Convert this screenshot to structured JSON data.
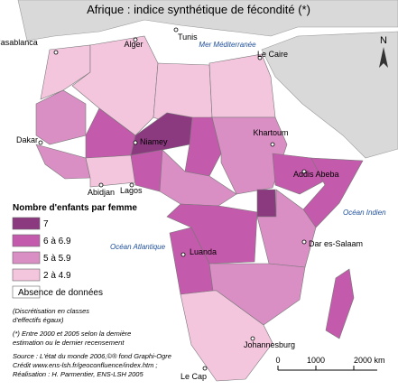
{
  "title": "Afrique : indice synthétique de fécondité (*)",
  "seas": [
    "Mer Méditerranée",
    "Océan Indien",
    "Océan Atlantique"
  ],
  "cities": [
    "Casablanca",
    "Alger",
    "Tunis",
    "Le Caire",
    "Dakar",
    "Niamey",
    "Khartoum",
    "Addis Abeba",
    "Abidjan",
    "Lagos",
    "Luanda",
    "Dar es-Salaam",
    "Johannesburg",
    "Le Cap"
  ],
  "legend": {
    "title": "Nombre d'enfants par femme",
    "items": [
      {
        "label": "7",
        "color": "#8b3a80"
      },
      {
        "label": "6 à 6.9",
        "color": "#c45aab"
      },
      {
        "label": "5 à 5.9",
        "color": "#d98fc4"
      },
      {
        "label": "2 à 4.9",
        "color": "#f3c6de"
      },
      {
        "label": "Absence de données",
        "color": "#ffffff"
      }
    ]
  },
  "notes": [
    "(Discrétisation en classes",
    "d'effectifs égaux)",
    "(*) Entre 2000 et 2005 selon la dernière",
    "estimation ou le dernier recensement",
    "Source : L'état du monde 2006,©® fond Graphi-Ogre",
    "Crédit www.ens-lsh.fr/geoconfluence/index.htm ;",
    "Réalisation : H. Parmentier, ENS-LSH 2005"
  ],
  "scale": [
    "0",
    "1000",
    "2000 km"
  ],
  "north": "N"
}
